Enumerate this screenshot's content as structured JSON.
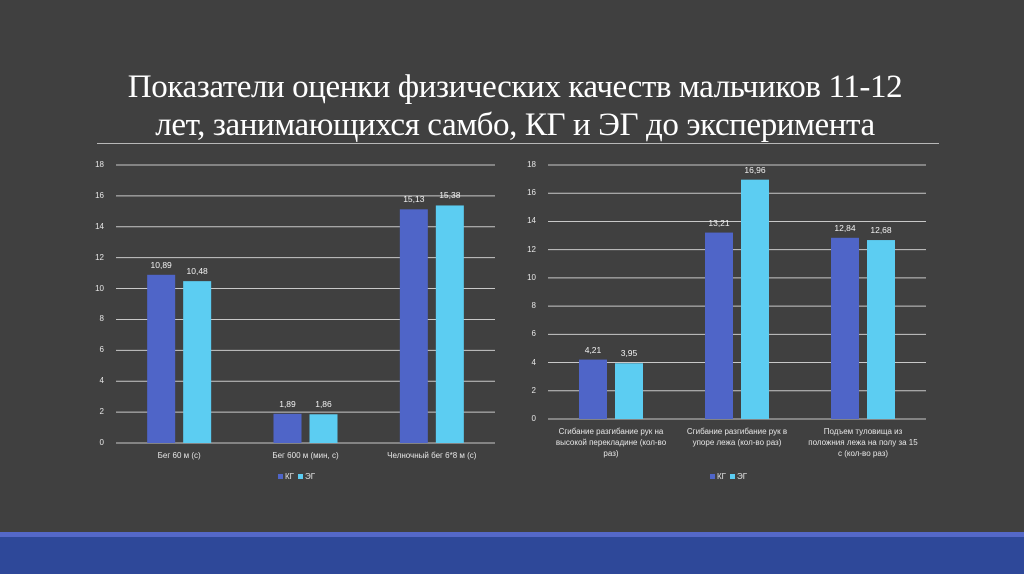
{
  "slide": {
    "title_line1": "Показатели оценки физических качеств мальчиков 11-12",
    "title_line2": "лет, занимающихся самбо, КГ и ЭГ до эксперимента"
  },
  "colors": {
    "background": "#404040",
    "kg": "#4f65c8",
    "eg": "#5ccdf2",
    "footer_strip": "#5468c8",
    "footer_bar": "#2e4899"
  },
  "chart_data": [
    {
      "type": "bar",
      "title": "",
      "xlabel": "",
      "ylabel": "",
      "ylim": [
        0,
        18
      ],
      "yticks": [
        "0",
        "2",
        "4",
        "6",
        "8",
        "10",
        "12",
        "14",
        "16",
        "18"
      ],
      "grid": true,
      "legend_position": "bottom",
      "categories": [
        "Бег 60 м (с)",
        "Бег 600 м (мин, с)",
        "Челночный бег 6*8 м (с)"
      ],
      "series": [
        {
          "name": "КГ",
          "values": [
            10.89,
            1.89,
            15.13
          ],
          "labels": [
            "10,89",
            "1,89",
            "15,13"
          ]
        },
        {
          "name": "ЭГ",
          "values": [
            10.48,
            1.86,
            15.38
          ],
          "labels": [
            "10,48",
            "1,86",
            "15,38"
          ]
        }
      ]
    },
    {
      "type": "bar",
      "title": "",
      "xlabel": "",
      "ylabel": "",
      "ylim": [
        0,
        18
      ],
      "yticks": [
        "0",
        "2",
        "4",
        "6",
        "8",
        "10",
        "12",
        "14",
        "16",
        "18"
      ],
      "grid": true,
      "legend_position": "bottom",
      "categories": [
        "Сгибание разгибание рук на высокой перекладине (кол-во раз)",
        "Сгибание разгибание рук в упоре лежа (кол-во раз)",
        "Подъем туловища из положния лежа на полу за 15 с (кол-во раз)"
      ],
      "category_lines": [
        [
          "Сгибание разгибание рук на",
          "высокой перекладине (кол-во",
          "раз)"
        ],
        [
          "Сгибание разгибание рук в",
          "упоре лежа (кол-во раз)"
        ],
        [
          "Подъем туловища из",
          "положния лежа на полу за 15",
          "с (кол-во раз)"
        ]
      ],
      "series": [
        {
          "name": "КГ",
          "values": [
            4.21,
            13.21,
            12.84
          ],
          "labels": [
            "4,21",
            "13,21",
            "12,84"
          ]
        },
        {
          "name": "ЭГ",
          "values": [
            3.95,
            16.96,
            12.68
          ],
          "labels": [
            "3,95",
            "16,96",
            "12,68"
          ]
        }
      ]
    }
  ]
}
